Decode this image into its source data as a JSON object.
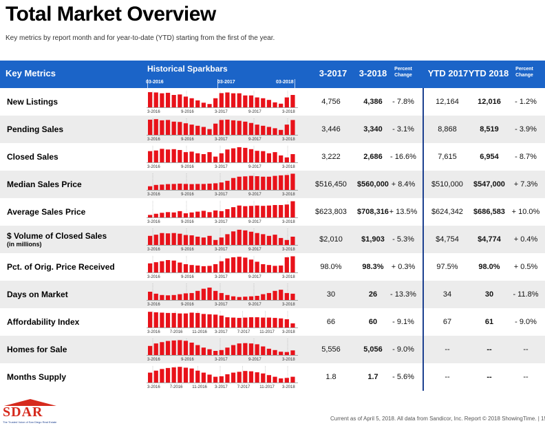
{
  "title": "Total Market Overview",
  "subtitle": "Key metrics by report month and for year-to-date (YTD) starting from the first of the year.",
  "header": {
    "key_metrics": "Key Metrics",
    "sparkbars": "Historical Sparkbars",
    "date_labels": [
      "03-2016",
      "03-2017",
      "03-2018"
    ],
    "col_3_2017": "3-2017",
    "col_3_2018": "3-2018",
    "percent_change": "Percent Change",
    "ytd_2017": "YTD 2017",
    "ytd_2018": "YTD 2018",
    "ytd_percent_change": "Percent Change"
  },
  "colors": {
    "header_blue": "#1b64c8",
    "bar_red": "#e8121a",
    "divider": "#1b3f8f"
  },
  "rows": [
    {
      "name": "New Listings",
      "sub": "",
      "v2017": "4,756",
      "v2018": "4,386",
      "pct": "- 7.8%",
      "ytd2017": "12,164",
      "ytd2018": "12,016",
      "ytdpct": "- 1.2%",
      "axis": [
        "3-2016",
        "9-2016",
        "3-2017",
        "9-2017",
        "3-2018"
      ],
      "bars": [
        0.92,
        0.9,
        0.85,
        0.88,
        0.75,
        0.78,
        0.65,
        0.55,
        0.42,
        0.28,
        0.2,
        0.55,
        0.86,
        0.9,
        0.85,
        0.85,
        0.72,
        0.72,
        0.6,
        0.55,
        0.45,
        0.3,
        0.22,
        0.6,
        0.75
      ]
    },
    {
      "name": "Pending Sales",
      "sub": "",
      "v2017": "3,446",
      "v2018": "3,340",
      "pct": "- 3.1%",
      "ytd2017": "8,868",
      "ytd2018": "8,519",
      "ytdpct": "- 3.9%",
      "axis": [
        "3-2016",
        "9-2016",
        "3-2017",
        "9-2017",
        "3-2018"
      ],
      "bars": [
        0.92,
        0.95,
        0.88,
        0.9,
        0.8,
        0.78,
        0.7,
        0.62,
        0.55,
        0.48,
        0.35,
        0.68,
        0.9,
        0.92,
        0.88,
        0.85,
        0.8,
        0.72,
        0.62,
        0.55,
        0.48,
        0.4,
        0.3,
        0.62,
        0.9
      ]
    },
    {
      "name": "Closed Sales",
      "sub": "",
      "v2017": "3,222",
      "v2018": "2,686",
      "pct": "- 16.6%",
      "ytd2017": "7,615",
      "ytd2018": "6,954",
      "ytdpct": "- 8.7%",
      "axis": [
        "3-2016",
        "9-2016",
        "3-2017",
        "9-2017",
        "3-2018"
      ],
      "bars": [
        0.68,
        0.72,
        0.82,
        0.78,
        0.8,
        0.75,
        0.62,
        0.65,
        0.55,
        0.5,
        0.62,
        0.35,
        0.55,
        0.78,
        0.85,
        0.92,
        0.88,
        0.8,
        0.7,
        0.68,
        0.55,
        0.62,
        0.42,
        0.3,
        0.5
      ]
    },
    {
      "name": "Median Sales Price",
      "sub": "",
      "v2017": "$516,450",
      "v2018": "$560,000",
      "pct": "+ 8.4%",
      "ytd2017": "$510,000",
      "ytd2018": "$547,000",
      "ytdpct": "+ 7.3%",
      "axis": [
        "3-2016",
        "9-2016",
        "3-2017",
        "9-2017",
        "3-2018"
      ],
      "bars": [
        0.22,
        0.3,
        0.32,
        0.35,
        0.36,
        0.38,
        0.36,
        0.35,
        0.36,
        0.36,
        0.38,
        0.4,
        0.45,
        0.55,
        0.72,
        0.8,
        0.82,
        0.85,
        0.83,
        0.8,
        0.8,
        0.85,
        0.88,
        0.9,
        0.98
      ]
    },
    {
      "name": "Average Sales Price",
      "sub": "",
      "v2017": "$623,803",
      "v2018": "$708,316",
      "pct": "+ 13.5%",
      "ytd2017": "$624,342",
      "ytd2018": "$686,583",
      "ytdpct": "+ 10.0%",
      "axis": [
        "3-2016",
        "9-2016",
        "3-2017",
        "9-2017",
        "3-2018"
      ],
      "bars": [
        0.15,
        0.22,
        0.28,
        0.32,
        0.3,
        0.38,
        0.25,
        0.3,
        0.35,
        0.4,
        0.32,
        0.42,
        0.38,
        0.5,
        0.62,
        0.72,
        0.68,
        0.7,
        0.72,
        0.7,
        0.72,
        0.75,
        0.75,
        0.78,
        0.98
      ]
    },
    {
      "name": "$ Volume of Closed Sales",
      "sub": "(in millions)",
      "v2017": "$2,010",
      "v2018": "$1,903",
      "pct": "- 5.3%",
      "ytd2017": "$4,754",
      "ytd2018": "$4,774",
      "ytdpct": "+ 0.4%",
      "axis": [
        "3-2016",
        "9-2016",
        "3-2017",
        "9-2017",
        "3-2018"
      ],
      "bars": [
        0.55,
        0.62,
        0.72,
        0.7,
        0.72,
        0.68,
        0.6,
        0.58,
        0.5,
        0.45,
        0.55,
        0.3,
        0.45,
        0.65,
        0.82,
        0.92,
        0.88,
        0.8,
        0.72,
        0.65,
        0.55,
        0.62,
        0.42,
        0.3,
        0.5
      ]
    },
    {
      "name": "Pct. of Orig. Price Received",
      "sub": "",
      "v2017": "98.0%",
      "v2018": "98.3%",
      "pct": "+ 0.3%",
      "ytd2017": "97.5%",
      "ytd2018": "98.0%",
      "ytdpct": "+ 0.5%",
      "axis": [
        "3-2016",
        "9-2016",
        "3-2017",
        "9-2017",
        "3-2018"
      ],
      "bars": [
        0.55,
        0.62,
        0.68,
        0.75,
        0.72,
        0.6,
        0.5,
        0.45,
        0.42,
        0.38,
        0.4,
        0.5,
        0.68,
        0.85,
        0.92,
        0.95,
        0.9,
        0.78,
        0.65,
        0.5,
        0.45,
        0.4,
        0.42,
        0.92,
        0.98
      ]
    },
    {
      "name": "Days on Market",
      "sub": "",
      "v2017": "30",
      "v2018": "26",
      "pct": "- 13.3%",
      "ytd2017": "34",
      "ytd2018": "30",
      "ytdpct": "- 11.8%",
      "axis": [
        "3-2016",
        "9-2016",
        "3-2017",
        "9-2017",
        "3-2018"
      ],
      "bars": [
        0.5,
        0.38,
        0.3,
        0.28,
        0.3,
        0.35,
        0.4,
        0.42,
        0.55,
        0.68,
        0.75,
        0.55,
        0.42,
        0.3,
        0.22,
        0.18,
        0.2,
        0.22,
        0.25,
        0.35,
        0.42,
        0.55,
        0.62,
        0.42,
        0.38
      ]
    },
    {
      "name": "Affordability Index",
      "sub": "",
      "v2017": "66",
      "v2018": "60",
      "pct": "- 9.1%",
      "ytd2017": "67",
      "ytd2018": "61",
      "ytdpct": "- 9.0%",
      "axis": [
        "3-2016",
        "7-2016",
        "11-2016",
        "3-2017",
        "7-2017",
        "11-2017",
        "3-2018"
      ],
      "bars": [
        0.95,
        0.92,
        0.9,
        0.88,
        0.88,
        0.85,
        0.85,
        0.9,
        0.88,
        0.82,
        0.8,
        0.78,
        0.72,
        0.62,
        0.6,
        0.58,
        0.6,
        0.62,
        0.62,
        0.6,
        0.6,
        0.58,
        0.55,
        0.5,
        0.25
      ]
    },
    {
      "name": "Homes for Sale",
      "sub": "",
      "v2017": "5,556",
      "v2018": "5,056",
      "pct": "- 9.0%",
      "ytd2017": "--",
      "ytd2018": "--",
      "ytdpct": "--",
      "axis": [
        "3-2016",
        "9-2016",
        "3-2017",
        "9-2017",
        "3-2018"
      ],
      "bars": [
        0.55,
        0.7,
        0.78,
        0.85,
        0.88,
        0.9,
        0.86,
        0.75,
        0.6,
        0.45,
        0.35,
        0.25,
        0.3,
        0.45,
        0.6,
        0.7,
        0.72,
        0.7,
        0.65,
        0.52,
        0.38,
        0.3,
        0.2,
        0.18,
        0.28
      ]
    },
    {
      "name": "Months Supply",
      "sub": "",
      "v2017": "1.8",
      "v2018": "1.7",
      "pct": "- 5.6%",
      "ytd2017": "--",
      "ytd2018": "--",
      "ytdpct": "--",
      "axis": [
        "3-2016",
        "7-2016",
        "11-2016",
        "3-2017",
        "7-2017",
        "11-2017",
        "3-2018"
      ],
      "bars": [
        0.6,
        0.72,
        0.82,
        0.88,
        0.92,
        0.95,
        0.9,
        0.85,
        0.72,
        0.6,
        0.48,
        0.35,
        0.38,
        0.5,
        0.6,
        0.65,
        0.7,
        0.68,
        0.62,
        0.55,
        0.45,
        0.35,
        0.25,
        0.28,
        0.35
      ]
    }
  ],
  "logo": {
    "text": "SDAR",
    "tagline": "The Trusted Voice of San Diego Real Estate"
  },
  "footer": "Current as of April 5, 2018. All data from Sandicor, Inc. Report © 2018 ShowingTime.  |  15"
}
